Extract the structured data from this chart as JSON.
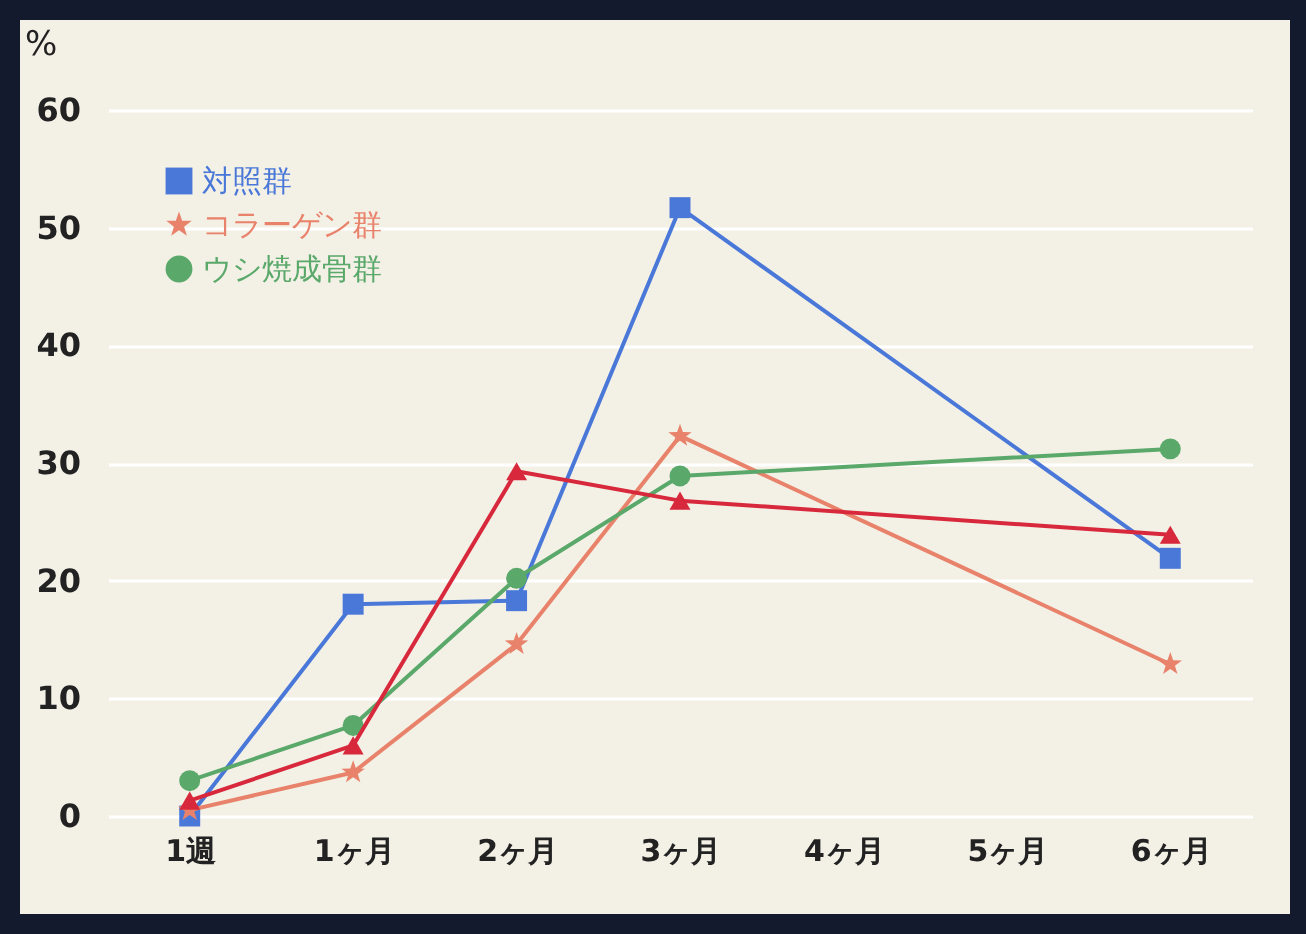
{
  "chart_data": {
    "type": "line",
    "ylabel": "%",
    "categories": [
      "1週",
      "1ヶ月",
      "2ヶ月",
      "3ヶ月",
      "4ヶ月",
      "5ヶ月",
      "6ヶ月"
    ],
    "series": [
      {
        "name": "対照群",
        "color": "#4a78d8",
        "marker": "square",
        "values": [
          0,
          18,
          18.3,
          51.7,
          null,
          null,
          21.9
        ]
      },
      {
        "name": "コラーゲン群",
        "color": "#e8826a",
        "marker": "star",
        "values": [
          0.5,
          3.7,
          14.6,
          32.3,
          null,
          null,
          12.9
        ]
      },
      {
        "name": "ウシ焼成骨群",
        "color": "#5aa86a",
        "marker": "circle",
        "values": [
          3,
          7.7,
          20.2,
          28.9,
          null,
          null,
          31.2
        ]
      },
      {
        "color": "#d8283c",
        "marker": "triangle",
        "values": [
          1.3,
          6,
          29.3,
          26.8,
          null,
          null,
          23.9
        ]
      }
    ],
    "ylim": [
      0,
      60
    ],
    "yticks": [
      0,
      10,
      20,
      30,
      40,
      50,
      60
    ],
    "grid": "y",
    "legend": "top left"
  }
}
